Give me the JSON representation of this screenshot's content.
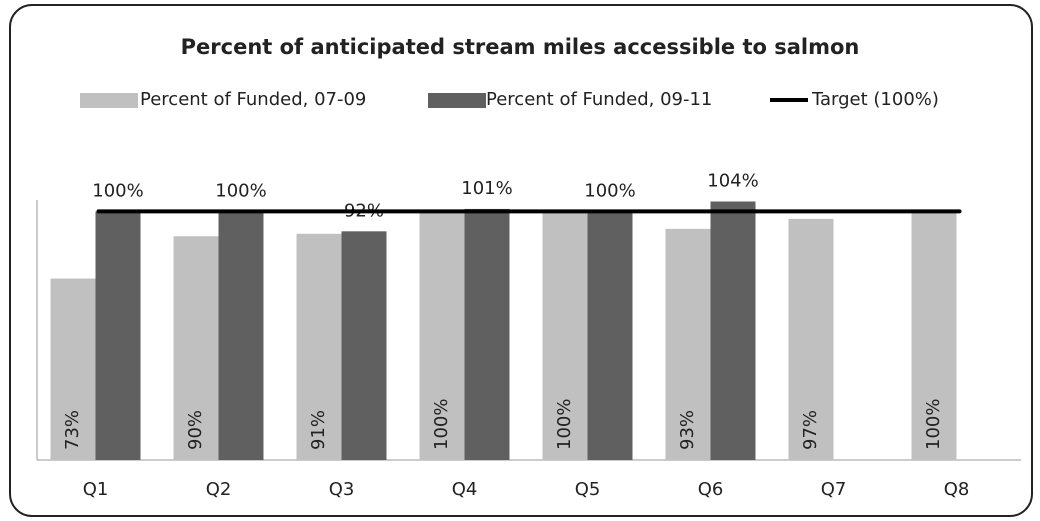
{
  "chart_data": {
    "type": "bar",
    "title": "Percent of anticipated stream miles accessible to salmon",
    "categories": [
      "Q1",
      "Q2",
      "Q3",
      "Q4",
      "Q5",
      "Q6",
      "Q7",
      "Q8"
    ],
    "ylim": [
      0,
      105
    ],
    "series": [
      {
        "name": "Percent of Funded, 07-09",
        "color": "#c0c0c0",
        "values": [
          73,
          90,
          91,
          100,
          100,
          93,
          97,
          100
        ],
        "value_labels": [
          "73%",
          "90%",
          "91%",
          "100%",
          "100%",
          "93%",
          "97%",
          "100%"
        ]
      },
      {
        "name": "Percent of Funded, 09-11",
        "color": "#606060",
        "values": [
          100,
          100,
          92,
          101,
          100,
          104,
          null,
          null
        ],
        "value_labels": [
          "100%",
          "100%",
          "92%",
          "101%",
          "100%",
          "104%",
          null,
          null
        ]
      },
      {
        "name": "Target (100%)",
        "color": "#000000",
        "type": "line",
        "values": [
          100,
          100,
          100,
          100,
          100,
          100,
          100,
          100
        ]
      }
    ]
  }
}
